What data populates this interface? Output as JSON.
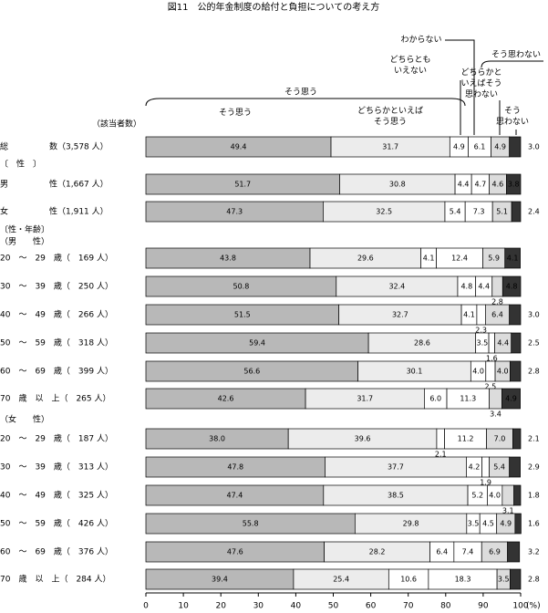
{
  "chart_data": {
    "type": "stacked-bar-horizontal",
    "title": "図11　公的年金制度の給付と負担についての考え方",
    "count_header": "（該当者数）",
    "group_labels": {
      "agree": "そう思う",
      "disagree": "そう思わない"
    },
    "sections": [
      "〔　性　〕",
      "〔性・年齢〕",
      "（男　　性）",
      "（女　　性）"
    ],
    "categories": [
      "総　　　　　数（3,578 人）",
      "男　　　　　性（1,667 人）",
      "女　　　　　性（1,911 人）",
      "20　～　29　歳（　169 人）",
      "30　～　39　歳（　250 人）",
      "40　～　49　歳（　266 人）",
      "50　～　59　歳（　318 人）",
      "60　～　69　歳（　399 人）",
      "70　歳　以　上（　265 人）",
      "20　～　29　歳（　187 人）",
      "30　～　39　歳（　313 人）",
      "40　～　49　歳（　325 人）",
      "50　～　59　歳（　426 人）",
      "60　～　69　歳（　376 人）",
      "70　歳　以　上（　284 人）"
    ],
    "series": [
      {
        "name": "そう思う",
        "color": "#b8b8b8",
        "values": [
          49.4,
          51.7,
          47.3,
          43.8,
          50.8,
          51.5,
          59.4,
          56.6,
          42.6,
          38.0,
          47.8,
          47.4,
          55.8,
          47.6,
          39.4
        ],
        "value_labels": [
          "49.4",
          "51.7",
          "47.3",
          "43.8",
          "50.8",
          "51.5",
          "59.4",
          "56.6",
          "42.6",
          "38.0",
          "47.8",
          "47.4",
          "55.8",
          "47.6",
          "39.4"
        ]
      },
      {
        "name": "どちらかといえば\nそう思う",
        "color": "#ececec",
        "values": [
          31.7,
          30.8,
          32.5,
          29.6,
          32.4,
          32.7,
          28.6,
          30.1,
          31.7,
          39.6,
          37.7,
          38.5,
          29.8,
          28.2,
          25.4
        ],
        "value_labels": [
          "31.7",
          "30.8",
          "32.5",
          "29.6",
          "32.4",
          "32.7",
          "28.6",
          "30.1",
          "31.7",
          "39.6",
          "37.7",
          "38.5",
          "29.8",
          "28.2",
          "25.4"
        ]
      },
      {
        "name": "どちらとも\nいえない",
        "color": "#ffffff",
        "values": [
          4.9,
          4.4,
          5.4,
          4.1,
          4.8,
          4.1,
          3.5,
          4.0,
          6.0,
          2.1,
          4.2,
          5.2,
          3.5,
          6.4,
          10.6
        ],
        "value_labels": [
          "4.9",
          "4.4",
          "5.4",
          "4.1",
          "4.8",
          "4.1",
          "3.5",
          "4.0",
          "6.0",
          "2.1",
          "4.2",
          "5.2",
          "3.5",
          "6.4",
          "10.6"
        ]
      },
      {
        "name": "わからない",
        "color": "#ffffff",
        "values": [
          6.1,
          4.7,
          7.3,
          12.4,
          4.4,
          2.3,
          1.6,
          2.5,
          11.3,
          11.2,
          1.9,
          4.0,
          4.5,
          7.4,
          18.3
        ],
        "value_labels": [
          "6.1",
          "4.7",
          "7.3",
          "12.4",
          "4.4",
          "2.3",
          "1.6",
          "2.5",
          "11.3",
          "11.2",
          "1.9",
          "4.0",
          "4.5",
          "7.4",
          "18.3"
        ]
      },
      {
        "name": "どちらかと\nいえばそう\n思わない",
        "color": "#dcdcdc",
        "values": [
          4.9,
          4.6,
          5.1,
          5.9,
          2.8,
          6.4,
          4.4,
          4.0,
          3.4,
          7.0,
          5.4,
          3.1,
          4.9,
          6.9,
          3.5
        ],
        "value_labels": [
          "4.9",
          "4.6",
          "5.1",
          "5.9",
          "2.8",
          "6.4",
          "4.4",
          "4.0",
          "3.4",
          "7.0",
          "5.4",
          "3.1",
          "4.9",
          "6.9",
          "3.5"
        ]
      },
      {
        "name": "そう\n思わない",
        "color": "#333333",
        "values": [
          3.0,
          3.8,
          2.4,
          4.1,
          4.8,
          3.0,
          2.5,
          2.8,
          4.9,
          2.1,
          2.9,
          1.8,
          1.6,
          3.2,
          2.8
        ],
        "value_labels": [
          "3.0",
          "3.8",
          "2.4",
          "4.1",
          "4.8",
          "3.0",
          "2.5",
          "2.8",
          "4.9",
          "2.1",
          "2.9",
          "1.8",
          "1.6",
          "3.2",
          "2.8"
        ]
      }
    ],
    "xlim": [
      0,
      100
    ],
    "xticks": [
      0,
      10,
      20,
      30,
      40,
      50,
      60,
      70,
      80,
      90,
      100
    ],
    "x_unit": "(%)"
  }
}
